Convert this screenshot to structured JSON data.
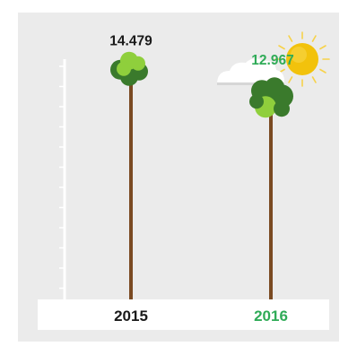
{
  "chart_data": {
    "type": "bar",
    "categories": [
      "2015",
      "2016"
    ],
    "values": [
      14.479,
      12.967
    ],
    "value_labels": [
      "14.479",
      "12.967"
    ],
    "ylim": [
      0,
      17.6
    ],
    "grid": false,
    "colors": {
      "panel": "#ebebeb",
      "baseline_band": "#ffffff",
      "trunk": "#7a4a22",
      "label_2015": "#1a1a1a",
      "label_2016": "#2fab57",
      "foliage_dark": "#3a7a2c",
      "foliage_light": "#8fcf3c",
      "sun": "#f2c20c",
      "cloud": "#ffffff"
    },
    "icons": [
      "tree-icon",
      "tree-icon",
      "sun-icon",
      "cloud-icon"
    ]
  }
}
